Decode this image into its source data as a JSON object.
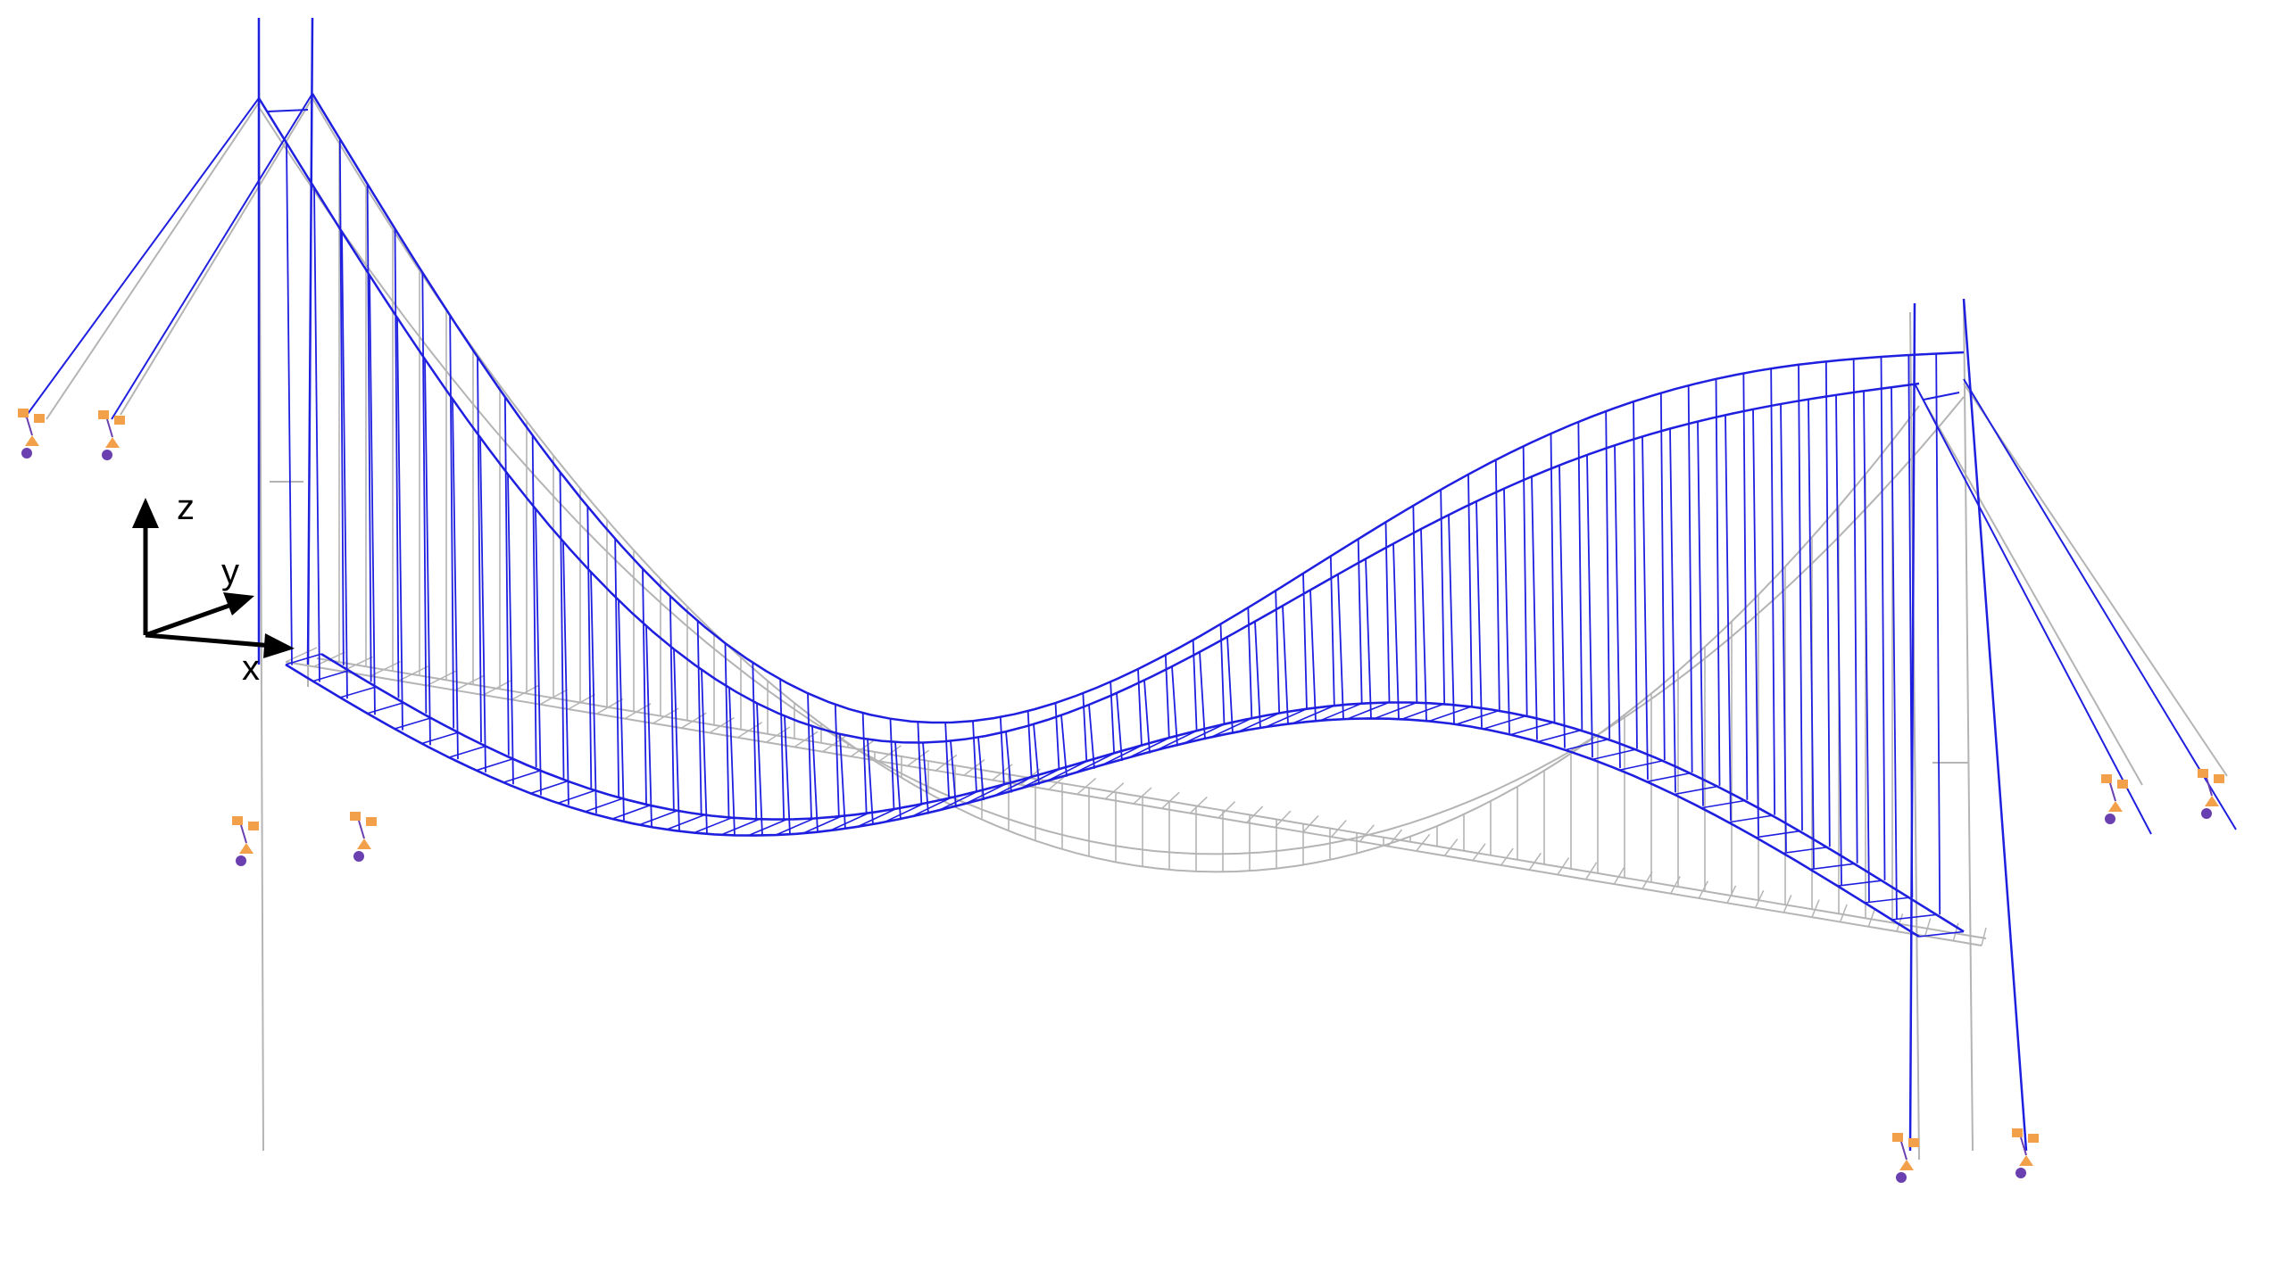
{
  "axes": {
    "z_label": "z",
    "y_label": "y",
    "x_label": "x"
  },
  "colors": {
    "deformed": "#1f1fe0",
    "undeformed": "#b4b4b4",
    "axis": "#000000",
    "support_orange": "#f2a04a",
    "support_purple": "#6a3fb0"
  },
  "icons": {
    "support": "support-restraint-icon",
    "axis_arrow": "axis-arrow-icon"
  }
}
